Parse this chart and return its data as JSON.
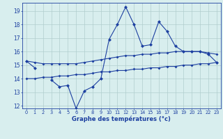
{
  "title": "Graphe des températures (°c)",
  "x_hours": [
    0,
    1,
    2,
    3,
    4,
    5,
    6,
    7,
    8,
    9,
    10,
    11,
    12,
    13,
    14,
    15,
    16,
    17,
    18,
    19,
    20,
    21,
    22,
    23
  ],
  "temp_main": [
    15.3,
    14.8,
    null,
    13.9,
    13.4,
    13.5,
    11.8,
    13.1,
    13.4,
    14.0,
    16.9,
    18.0,
    19.3,
    18.0,
    16.4,
    16.5,
    18.2,
    17.5,
    16.4,
    16.0,
    16.0,
    16.0,
    15.8,
    15.2
  ],
  "temp_upper": [
    15.3,
    15.2,
    15.1,
    15.1,
    15.1,
    15.1,
    15.1,
    15.2,
    15.3,
    15.4,
    15.5,
    15.6,
    15.7,
    15.7,
    15.8,
    15.8,
    15.9,
    15.9,
    16.0,
    16.0,
    16.0,
    16.0,
    15.9,
    15.8
  ],
  "temp_lower": [
    14.0,
    14.0,
    14.1,
    14.1,
    14.2,
    14.2,
    14.3,
    14.3,
    14.4,
    14.5,
    14.5,
    14.6,
    14.6,
    14.7,
    14.7,
    14.8,
    14.8,
    14.9,
    14.9,
    15.0,
    15.0,
    15.1,
    15.1,
    15.2
  ],
  "ylim": [
    11.8,
    19.6
  ],
  "yticks": [
    12,
    13,
    14,
    15,
    16,
    17,
    18,
    19
  ],
  "bg_color": "#d8eeee",
  "line_color": "#1c3fa0",
  "grid_color": "#b0cece"
}
